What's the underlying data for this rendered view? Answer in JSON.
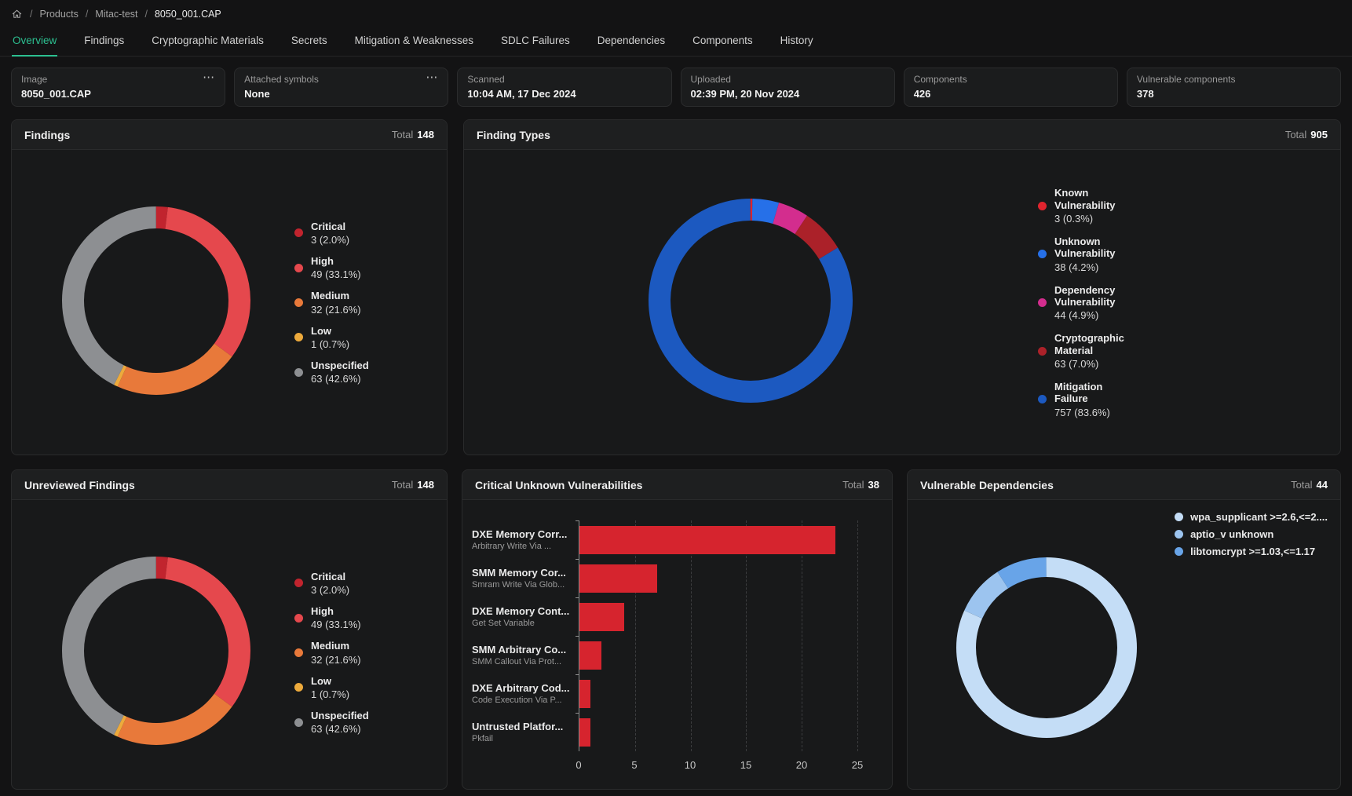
{
  "breadcrumb": {
    "separator": "/",
    "items": [
      {
        "label": "Products"
      },
      {
        "label": "Mitac-test"
      },
      {
        "label": "8050_001.CAP"
      }
    ]
  },
  "tabs": [
    {
      "label": "Overview",
      "active": true
    },
    {
      "label": "Findings"
    },
    {
      "label": "Cryptographic Materials"
    },
    {
      "label": "Secrets"
    },
    {
      "label": "Mitigation & Weaknesses"
    },
    {
      "label": "SDLC Failures"
    },
    {
      "label": "Dependencies"
    },
    {
      "label": "Components"
    },
    {
      "label": "History"
    }
  ],
  "info_cards": [
    {
      "label": "Image",
      "value": "8050_001.CAP",
      "menu": "⋯"
    },
    {
      "label": "Attached symbols",
      "value": "None",
      "menu": "⋯"
    },
    {
      "label": "Scanned",
      "value": "10:04 AM, 17 Dec 2024"
    },
    {
      "label": "Uploaded",
      "value": "02:39 PM, 20 Nov 2024"
    },
    {
      "label": "Components",
      "value": "426"
    },
    {
      "label": "Vulnerable components",
      "value": "378"
    }
  ],
  "cards": {
    "findings": {
      "title": "Findings",
      "total_label": "Total",
      "total": "148"
    },
    "finding_types": {
      "title": "Finding Types",
      "total_label": "Total",
      "total": "905"
    },
    "unreviewed": {
      "title": "Unreviewed Findings",
      "total_label": "Total",
      "total": "148"
    },
    "critical_unknown": {
      "title": "Critical Unknown Vulnerabilities",
      "total_label": "Total",
      "total": "38"
    },
    "vulnerable_deps": {
      "title": "Vulnerable Dependencies",
      "total_label": "Total",
      "total": "44"
    }
  },
  "chart_data": [
    {
      "id": "findings",
      "type": "donut",
      "title": "Findings",
      "total": 148,
      "labels": [
        "Critical",
        "High",
        "Medium",
        "Low",
        "Unspecified"
      ],
      "values": [
        3,
        49,
        32,
        1,
        63
      ],
      "display": [
        "3 (2.0%)",
        "49 (33.1%)",
        "32 (21.6%)",
        "1 (0.7%)",
        "63 (42.6%)"
      ],
      "colors": [
        "#c1242e",
        "#e5484d",
        "#e8793a",
        "#edaa3c",
        "#8d8f92"
      ],
      "legend_position": "right"
    },
    {
      "id": "finding_types",
      "type": "donut",
      "title": "Finding Types",
      "total": 905,
      "labels": [
        "Known Vulnerability",
        "Unknown Vulnerability",
        "Dependency Vulnerability",
        "Cryptographic Material",
        "Mitigation Failure"
      ],
      "values": [
        3,
        38,
        44,
        63,
        757
      ],
      "display": [
        "3 (0.3%)",
        "38 (4.2%)",
        "44 (4.9%)",
        "63 (7.0%)",
        "757 (83.6%)"
      ],
      "colors": [
        "#e0242e",
        "#2670e8",
        "#d32d8e",
        "#ab2129",
        "#1c59c0"
      ],
      "legend_position": "right"
    },
    {
      "id": "unreviewed_findings",
      "type": "donut",
      "title": "Unreviewed Findings",
      "total": 148,
      "labels": [
        "Critical",
        "High",
        "Medium",
        "Low",
        "Unspecified"
      ],
      "values": [
        3,
        49,
        32,
        1,
        63
      ],
      "display": [
        "3 (2.0%)",
        "49 (33.1%)",
        "32 (21.6%)",
        "1 (0.7%)",
        "63 (42.6%)"
      ],
      "colors": [
        "#c1242e",
        "#e5484d",
        "#e8793a",
        "#edaa3c",
        "#8d8f92"
      ],
      "legend_position": "right"
    },
    {
      "id": "critical_unknown_vulnerabilities",
      "type": "bar",
      "title": "Critical Unknown Vulnerabilities",
      "orientation": "horizontal",
      "total": 38,
      "categories": [
        {
          "label": "DXE Memory Corr...",
          "sublabel": "Arbitrary Write Via ..."
        },
        {
          "label": "SMM Memory Cor...",
          "sublabel": "Smram Write Via Glob..."
        },
        {
          "label": "DXE Memory Cont...",
          "sublabel": "Get Set Variable"
        },
        {
          "label": "SMM Arbitrary Co...",
          "sublabel": "SMM Callout Via Prot..."
        },
        {
          "label": "DXE Arbitrary Cod...",
          "sublabel": "Code Execution Via P..."
        },
        {
          "label": "Untrusted Platfor...",
          "sublabel": "Pkfail"
        }
      ],
      "values": [
        23,
        7,
        4,
        2,
        1,
        1
      ],
      "bar_color": "#d6242e",
      "xlim": [
        0,
        25
      ],
      "xticks": [
        "0",
        "5",
        "10",
        "15",
        "20",
        "25"
      ],
      "grid": "dashed-vertical"
    },
    {
      "id": "vulnerable_dependencies",
      "type": "donut",
      "title": "Vulnerable Dependencies",
      "total": 44,
      "labels": [
        "wpa_supplicant >=2.6,<=2....",
        "aptio_v unknown",
        "libtomcrypt >=1.03,<=1.17"
      ],
      "values": [
        36,
        4,
        4
      ],
      "colors": [
        "#c4ddf6",
        "#9cc4ef",
        "#68a4e8"
      ],
      "legend_position": "top-right"
    }
  ]
}
